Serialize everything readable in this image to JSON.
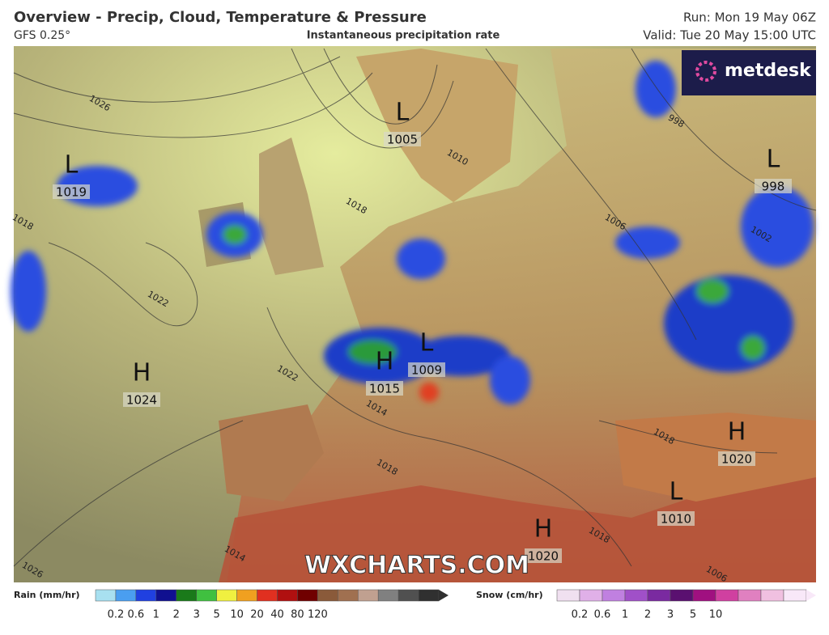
{
  "header": {
    "title": "Overview - Precip, Cloud, Temperature & Pressure",
    "model": "GFS 0.25°",
    "subtitle": "Instantaneous precipitation rate",
    "run": "Run: Mon 19 May 06Z",
    "valid": "Valid: Tue 20 May 15:00 UTC"
  },
  "logo": "metdesk",
  "watermark": "WXCHARTS.COM",
  "pressure_centers": [
    {
      "symbol": "L",
      "value": 1005
    },
    {
      "symbol": "L",
      "value": 1019
    },
    {
      "symbol": "L",
      "value": 998
    },
    {
      "symbol": "H",
      "value": 1024
    },
    {
      "symbol": "H",
      "value": 1015
    },
    {
      "symbol": "L",
      "value": 1009
    },
    {
      "symbol": "H",
      "value": 1020
    },
    {
      "symbol": "L",
      "value": 1010
    },
    {
      "symbol": "H",
      "value": 1020
    }
  ],
  "isobar_labels": [
    1026,
    998,
    1010,
    1018,
    1006,
    1002,
    1022,
    1022,
    1014,
    1018,
    1018,
    1018,
    1014,
    1026,
    1006,
    1018
  ],
  "legend": {
    "rain": {
      "label": "Rain (mm/hr)",
      "ticks": [
        0.2,
        0.6,
        1,
        2,
        3,
        5,
        10,
        20,
        40,
        80,
        120
      ]
    },
    "snow": {
      "label": "Snow (cm/hr)",
      "ticks": [
        0.2,
        0.6,
        1,
        2,
        3,
        5,
        10
      ]
    }
  }
}
